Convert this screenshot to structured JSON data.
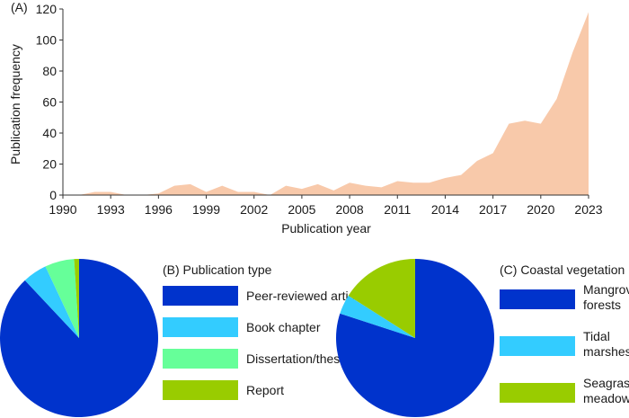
{
  "colors": {
    "area": "#f8c9aa",
    "peer": "#0033cc",
    "book": "#33ccff",
    "thesis": "#66ff99",
    "report": "#99cc00",
    "mangrove": "#0033cc",
    "tidal": "#33ccff",
    "seagrass": "#99cc00"
  },
  "chart_data": [
    {
      "type": "area",
      "title": "(A)",
      "xlabel": "Publication year",
      "ylabel": "Publication frequency",
      "xlim": [
        1990,
        2023
      ],
      "ylim": [
        0,
        120
      ],
      "x_ticks": [
        "1990",
        "1993",
        "1996",
        "1999",
        "2002",
        "2005",
        "2008",
        "2011",
        "2014",
        "2017",
        "2020",
        "2023"
      ],
      "y_ticks": [
        "0",
        "20",
        "40",
        "60",
        "80",
        "100",
        "120"
      ],
      "x": [
        1991,
        1992,
        1993,
        1994,
        1995,
        1996,
        1997,
        1998,
        1999,
        2000,
        2001,
        2002,
        2003,
        2004,
        2005,
        2006,
        2007,
        2008,
        2009,
        2010,
        2011,
        2012,
        2013,
        2014,
        2015,
        2016,
        2017,
        2018,
        2019,
        2020,
        2021,
        2022,
        2023
      ],
      "values": [
        0,
        2,
        2,
        0,
        0,
        1,
        6,
        7,
        2,
        6,
        2,
        2,
        0,
        6,
        4,
        7,
        3,
        8,
        6,
        5,
        9,
        8,
        8,
        11,
        13,
        22,
        27,
        46,
        48,
        46,
        62,
        92,
        118
      ]
    },
    {
      "type": "pie",
      "title": "(B) Publication type",
      "labels": [
        "Peer-reviewed article",
        "Book chapter",
        "Dissertation/thesis",
        "Report"
      ],
      "values": [
        88,
        5,
        6,
        1
      ]
    },
    {
      "type": "pie",
      "title": "(C) Coastal vegetation",
      "labels": [
        "Mangrove\nforests",
        "Tidal\nmarshes",
        "Seagrass\nmeadows"
      ],
      "values": [
        80,
        4,
        16
      ]
    }
  ]
}
